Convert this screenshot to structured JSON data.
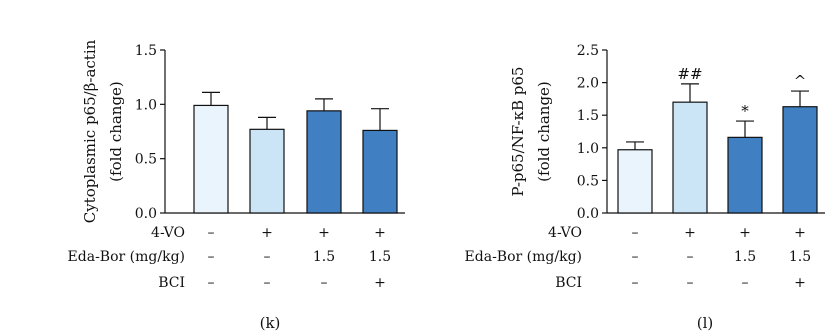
{
  "chart_data": [
    {
      "type": "bar",
      "panel_label": "(k)",
      "ylabel_line1": "Cytoplasmic p65/β-actin",
      "ylabel_line2": "(fold change)",
      "ylim": [
        0,
        1.5
      ],
      "yticks": [
        "0.0",
        "0.5",
        "1.0",
        "1.5"
      ],
      "values": [
        0.99,
        0.77,
        0.94,
        0.76
      ],
      "errors": [
        0.12,
        0.11,
        0.11,
        0.2
      ],
      "annotations": [
        "",
        "",
        "",
        ""
      ],
      "bar_colors": [
        "#eaf4fc",
        "#cbe5f6",
        "#3f7fc2",
        "#3f7fc2"
      ],
      "conditions": [
        {
          "label": "4-VO",
          "values": [
            "–",
            "+",
            "+",
            "+"
          ]
        },
        {
          "label": "Eda-Bor (mg/kg)",
          "values": [
            "–",
            "–",
            "1.5",
            "1.5"
          ]
        },
        {
          "label": "BCI",
          "values": [
            "–",
            "–",
            "–",
            "+"
          ]
        }
      ]
    },
    {
      "type": "bar",
      "panel_label": "(l)",
      "ylabel_line1": "P-p65/NF-κB p65",
      "ylabel_line2": "(fold change)",
      "ylim": [
        0,
        2.5
      ],
      "yticks": [
        "0.0",
        "0.5",
        "1.0",
        "1.5",
        "2.0",
        "2.5"
      ],
      "values": [
        0.97,
        1.7,
        1.16,
        1.63
      ],
      "errors": [
        0.12,
        0.28,
        0.25,
        0.24
      ],
      "annotations": [
        "",
        "##",
        "*",
        "^"
      ],
      "bar_colors": [
        "#eaf4fc",
        "#cbe5f6",
        "#3f7fc2",
        "#3f7fc2"
      ],
      "conditions": [
        {
          "label": "4-VO",
          "values": [
            "–",
            "+",
            "+",
            "+"
          ]
        },
        {
          "label": "Eda-Bor (mg/kg)",
          "values": [
            "–",
            "–",
            "1.5",
            "1.5"
          ]
        },
        {
          "label": "BCI",
          "values": [
            "–",
            "–",
            "–",
            "+"
          ]
        }
      ]
    }
  ]
}
